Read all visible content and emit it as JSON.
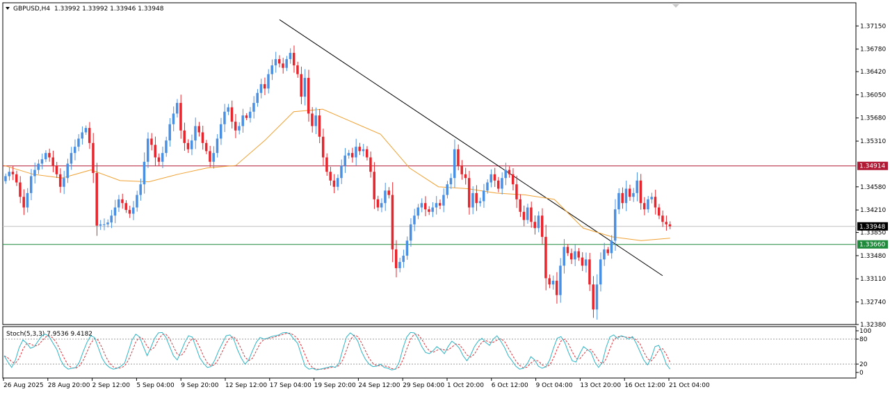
{
  "header": {
    "symbol_label": "GBPUSD,H4",
    "ohlc": "1.33992 1.33992 1.33946 1.33948"
  },
  "indicator": {
    "label": "Stoch(5,3,3) 7.9536 9.4182",
    "levels": [
      "100",
      "80",
      "20",
      "0"
    ]
  },
  "colors": {
    "bull": "#4a90e2",
    "bear": "#e8242c",
    "ma": "#f0a030",
    "trendline": "#000000",
    "resistance": "#b11a35",
    "support": "#1f8a3c",
    "current": "#c0c0c0",
    "stoch_main": "#2eb5c5",
    "stoch_signal": "#e0303a"
  },
  "chart_data": {
    "type": "candlestick",
    "symbol": "GBPUSD",
    "timeframe": "H4",
    "price_axis": {
      "min": 1.3238,
      "max": 1.3752,
      "ticks": [
        "1.37150",
        "1.36780",
        "1.36420",
        "1.36050",
        "1.35680",
        "1.35310",
        "1.34580",
        "1.34210",
        "1.33850",
        "1.33480",
        "1.33110",
        "1.32740",
        "1.32380"
      ]
    },
    "time_axis": {
      "labels": [
        "26 Aug 2025",
        "28 Aug 20:00",
        "2 Sep 12:00",
        "5 Sep 04:00",
        "9 Sep 20:00",
        "12 Sep 12:00",
        "17 Sep 04:00",
        "19 Sep 20:00",
        "24 Sep 12:00",
        "29 Sep 04:00",
        "1 Oct 20:00",
        "6 Oct 12:00",
        "9 Oct 04:00",
        "13 Oct 20:00",
        "16 Oct 12:00",
        "21 Oct 04:00"
      ]
    },
    "horizontal_levels": [
      {
        "label": "1.34914",
        "price": 1.34914,
        "kind": "resistance"
      },
      {
        "label": "1.33948",
        "price": 1.33948,
        "kind": "current"
      },
      {
        "label": "1.33660",
        "price": 1.3366,
        "kind": "support"
      }
    ],
    "trendline": {
      "from": 1.3725,
      "to": 1.3316
    },
    "closes": [
      1.3475,
      1.3482,
      1.3478,
      1.3465,
      1.3442,
      1.3425,
      1.3448,
      1.3475,
      1.3485,
      1.3495,
      1.3502,
      1.3512,
      1.3505,
      1.3492,
      1.3478,
      1.3458,
      1.3472,
      1.3495,
      1.3512,
      1.3522,
      1.3535,
      1.3545,
      1.3552,
      1.3528,
      1.348,
      1.3396,
      1.3398,
      1.3398,
      1.3401,
      1.3412,
      1.3425,
      1.3438,
      1.3432,
      1.3421,
      1.3415,
      1.3425,
      1.3445,
      1.3462,
      1.3498,
      1.3535,
      1.3525,
      1.3505,
      1.3498,
      1.3512,
      1.3532,
      1.3558,
      1.3575,
      1.3592,
      1.3548,
      1.3528,
      1.3518,
      1.3532,
      1.3555,
      1.3545,
      1.3528,
      1.3515,
      1.3498,
      1.3512,
      1.3535,
      1.3558,
      1.3578,
      1.3585,
      1.3562,
      1.3548,
      1.3555,
      1.3572,
      1.3568,
      1.3578,
      1.3592,
      1.3608,
      1.3622,
      1.3615,
      1.3638,
      1.3652,
      1.3662,
      1.3655,
      1.3648,
      1.3662,
      1.3672,
      1.3652,
      1.3638,
      1.3602,
      1.3632,
      1.3575,
      1.3555,
      1.3572,
      1.3538,
      1.3505,
      1.3482,
      1.3468,
      1.3458,
      1.3472,
      1.3492,
      1.3508,
      1.3512,
      1.3505,
      1.3522,
      1.3515,
      1.3518,
      1.3505,
      1.3482,
      1.3438,
      1.3425,
      1.3432,
      1.3452,
      1.3445,
      1.3358,
      1.3328,
      1.3338,
      1.3348,
      1.3372,
      1.3398,
      1.3412,
      1.3425,
      1.3432,
      1.3422,
      1.3418,
      1.3425,
      1.3432,
      1.3428,
      1.3445,
      1.3462,
      1.3472,
      1.3518,
      1.3492,
      1.3478,
      1.3472,
      1.3425,
      1.3448,
      1.3432,
      1.3435,
      1.3452,
      1.3465,
      1.3478,
      1.3468,
      1.3455,
      1.3472,
      1.3485,
      1.3478,
      1.3462,
      1.3438,
      1.3418,
      1.3405,
      1.3425,
      1.3402,
      1.3392,
      1.3412,
      1.3378,
      1.3312,
      1.3302,
      1.3308,
      1.3285,
      1.3332,
      1.3362,
      1.3352,
      1.3342,
      1.3355,
      1.3345,
      1.3332,
      1.3342,
      1.3302,
      1.3262,
      1.3302,
      1.3342,
      1.3358,
      1.3352,
      1.3372,
      1.3422,
      1.3448,
      1.3432,
      1.3455,
      1.3442,
      1.3448,
      1.3468,
      1.3432,
      1.3422,
      1.3438,
      1.3442,
      1.3425,
      1.3412,
      1.3402,
      1.3398,
      1.3395
    ],
    "moving_average": {
      "anchor_prices": [
        1.3492,
        1.3478,
        1.3472,
        1.3485,
        1.3468,
        1.3466,
        1.3478,
        1.3488,
        1.3492,
        1.3532,
        1.3578,
        1.3582,
        1.3562,
        1.3542,
        1.3488,
        1.3458,
        1.3455,
        1.3448,
        1.3445,
        1.3438,
        1.3392,
        1.3378,
        1.3372,
        1.3376
      ]
    },
    "stochastic": {
      "range": [
        0,
        100
      ],
      "main": [
        40,
        25,
        12,
        30,
        60,
        78,
        70,
        58,
        62,
        75,
        88,
        92,
        85,
        70,
        55,
        30,
        15,
        8,
        10,
        12,
        25,
        50,
        72,
        88,
        84,
        60,
        35,
        20,
        12,
        8,
        10,
        15,
        22,
        50,
        78,
        92,
        85,
        62,
        40,
        60,
        82,
        95,
        96,
        84,
        62,
        40,
        30,
        50,
        72,
        88,
        85,
        60,
        35,
        22,
        12,
        14,
        30,
        52,
        70,
        88,
        90,
        80,
        55,
        35,
        20,
        30,
        52,
        72,
        84,
        80,
        82,
        86,
        88,
        90,
        95,
        96,
        92,
        80,
        70,
        42,
        15,
        8,
        10,
        6,
        8,
        10,
        12,
        15,
        12,
        22,
        55,
        85,
        95,
        88,
        75,
        50,
        32,
        20,
        14,
        15,
        20,
        12,
        10,
        6,
        8,
        25,
        58,
        85,
        96,
        95,
        82,
        62,
        48,
        45,
        52,
        62,
        55,
        45,
        62,
        75,
        68,
        58,
        40,
        28,
        42,
        62,
        75,
        82,
        72,
        65,
        80,
        88,
        75,
        60,
        40,
        28,
        15,
        8,
        10,
        20,
        38,
        30,
        15,
        10,
        14,
        30,
        58,
        82,
        86,
        72,
        48,
        28,
        25,
        45,
        62,
        55,
        48,
        25,
        12,
        25,
        60,
        85,
        90,
        82,
        88,
        85,
        80,
        86,
        70,
        50,
        30,
        18,
        35,
        62,
        65,
        45,
        20,
        8
      ]
    }
  }
}
